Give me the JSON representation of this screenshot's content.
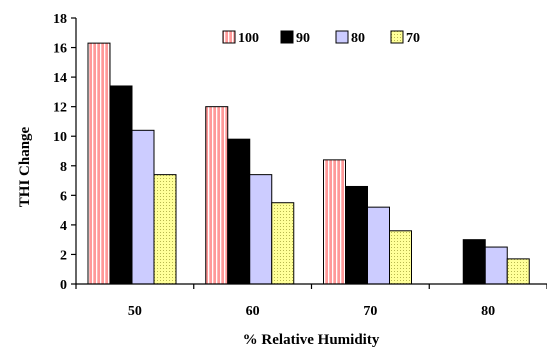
{
  "chart_data": {
    "type": "bar",
    "categories": [
      "50",
      "60",
      "70",
      "80"
    ],
    "series": [
      {
        "name": "100",
        "values": [
          16.3,
          12.0,
          8.4,
          0
        ],
        "color": "#ff9999",
        "pattern": "vertical-lines"
      },
      {
        "name": "90",
        "values": [
          13.4,
          9.8,
          6.6,
          3.0
        ],
        "color": "#000000",
        "pattern": "solid"
      },
      {
        "name": "80",
        "values": [
          10.4,
          7.4,
          5.2,
          2.5
        ],
        "color": "#ccccff",
        "pattern": "solid"
      },
      {
        "name": "70",
        "values": [
          7.4,
          5.5,
          3.6,
          1.7
        ],
        "color": "#ffff99",
        "pattern": "dots"
      }
    ],
    "xlabel": "% Relative Humidity",
    "ylabel": "THI Change",
    "ylim": [
      0,
      18
    ],
    "yticks": [
      "0",
      "2",
      "4",
      "6",
      "8",
      "10",
      "12",
      "14",
      "16",
      "18"
    ],
    "legend_position": "top-right",
    "grid": false
  }
}
